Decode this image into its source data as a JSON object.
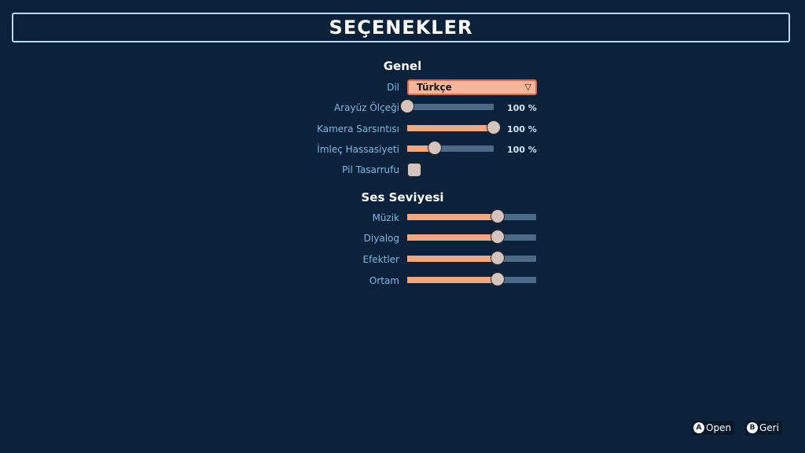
{
  "title": "Seçenekler",
  "general": {
    "heading": "Genel",
    "language": {
      "label": "Dil",
      "value": "Türkçe"
    },
    "ui_scale": {
      "label": "Arayüz Ölçeği",
      "value_text": "100 %",
      "level": 0.0
    },
    "camera_shake": {
      "label": "Kamera Sarsıntısı",
      "value_text": "100 %",
      "level": 1.0
    },
    "cursor_sensitivity": {
      "label": "İmleç Hassasiyeti",
      "value_text": "100 %",
      "level": 0.32
    },
    "battery_saver": {
      "label": "Pil Tasarrufu",
      "checked": false
    }
  },
  "volume": {
    "heading": "Ses Seviyesi",
    "music": {
      "label": "Müzik",
      "level": 0.7
    },
    "dialog": {
      "label": "Diyalog",
      "level": 0.7
    },
    "effects": {
      "label": "Efektler",
      "level": 0.7
    },
    "ambient": {
      "label": "Ortam",
      "level": 0.7
    }
  },
  "hints": [
    {
      "button": "A",
      "label": "Open"
    },
    {
      "button": "B",
      "label": "Geri"
    }
  ],
  "colors": {
    "background": "#0b223a",
    "accent": "#f4a77c",
    "track": "#4a6a87",
    "label": "#7fb8e6"
  }
}
